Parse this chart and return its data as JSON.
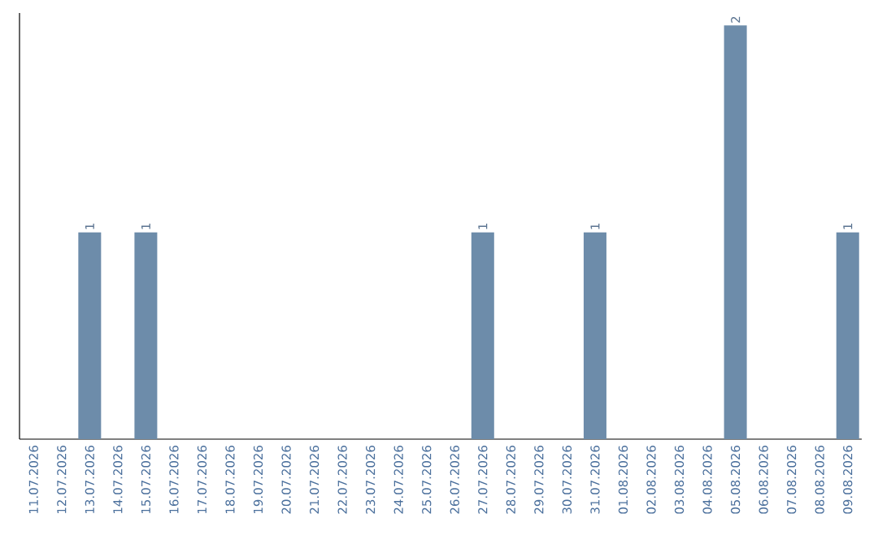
{
  "chart_data": {
    "type": "bar",
    "categories": [
      "11.07.2026",
      "12.07.2026",
      "13.07.2026",
      "14.07.2026",
      "15.07.2026",
      "16.07.2026",
      "17.07.2026",
      "18.07.2026",
      "19.07.2026",
      "20.07.2026",
      "21.07.2026",
      "22.07.2026",
      "23.07.2026",
      "24.07.2026",
      "25.07.2026",
      "26.07.2026",
      "27.07.2026",
      "28.07.2026",
      "29.07.2026",
      "30.07.2026",
      "31.07.2026",
      "01.08.2026",
      "02.08.2026",
      "03.08.2026",
      "04.08.2026",
      "05.08.2026",
      "06.08.2026",
      "07.08.2026",
      "08.08.2026",
      "09.08.2026"
    ],
    "values": [
      0,
      0,
      1,
      0,
      1,
      0,
      0,
      0,
      0,
      0,
      0,
      0,
      0,
      0,
      0,
      0,
      1,
      0,
      0,
      0,
      1,
      0,
      0,
      0,
      0,
      2,
      0,
      0,
      0,
      1
    ],
    "value_labels": [
      null,
      null,
      "1",
      null,
      "1",
      null,
      null,
      null,
      null,
      null,
      null,
      null,
      null,
      null,
      null,
      null,
      "1",
      null,
      null,
      null,
      "1",
      null,
      null,
      null,
      null,
      "2",
      null,
      null,
      null,
      "1"
    ],
    "color": "#6d8caa",
    "tick_labels": "x"
  }
}
